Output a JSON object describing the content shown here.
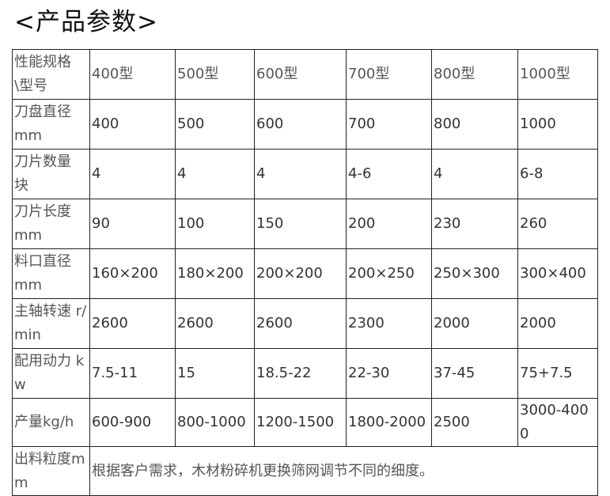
{
  "title": "<产品参数>",
  "table": {
    "header": [
      "性能规格\\型号",
      "400型",
      "500型",
      "600型",
      "700型",
      "800型",
      "1000型"
    ],
    "rows": [
      [
        "刀盘直径 mm",
        "400",
        "500",
        "600",
        "700",
        "800",
        "1000"
      ],
      [
        "刀片数量 块",
        "4",
        "4",
        "4",
        "4-6",
        "4",
        "6-8"
      ],
      [
        "刀片长度 mm",
        "90",
        "100",
        "150",
        "200",
        "230",
        "260"
      ],
      [
        "料口直径 mm",
        "160×200",
        "180×200",
        "200×200",
        "200×250",
        "250×300",
        "300×400"
      ],
      [
        "主轴转速 r/min",
        "2600",
        "2600",
        "2600",
        "2300",
        "2000",
        "2000"
      ],
      [
        "配用动力 kw",
        "7.5-11",
        "15",
        "18.5-22",
        "22-30",
        "37-45",
        "75+7.5"
      ],
      [
        "产量kg/h",
        "600-900",
        "800-1000",
        "1200-1500",
        "1800-2000",
        "2500",
        "3000-4000"
      ]
    ],
    "last_row": {
      "label": "出料粒度mm",
      "text": "根据客户需求，木材粉碎机更换筛网调节不同的细度。"
    }
  }
}
